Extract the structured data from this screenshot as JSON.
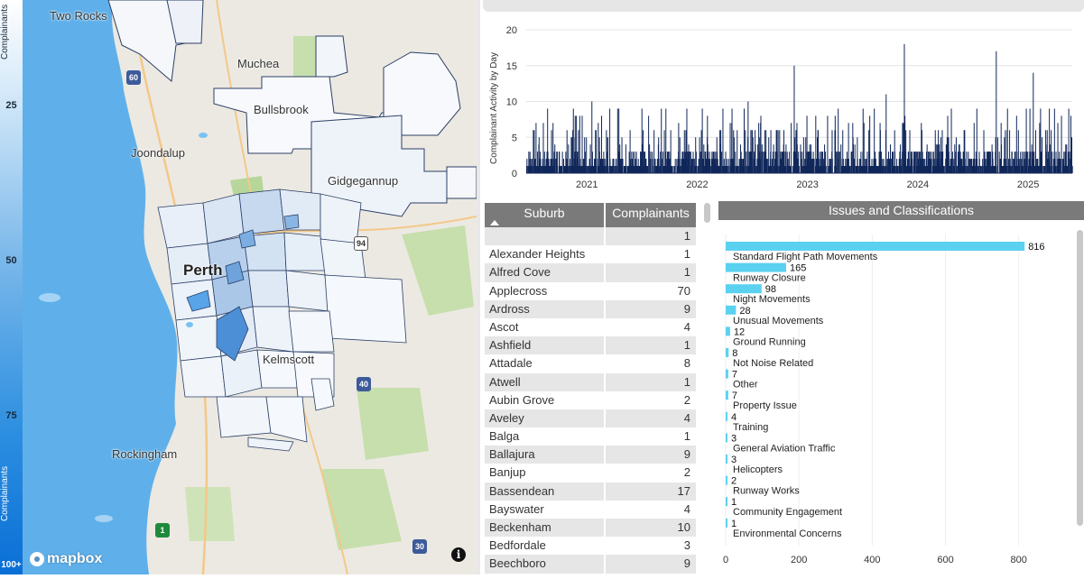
{
  "legend": {
    "title_top": "Complainants",
    "title_bottom": "Complainants",
    "ticks": [
      {
        "label": "25"
      },
      {
        "label": "50"
      },
      {
        "label": "75"
      },
      {
        "label": "100+"
      }
    ]
  },
  "map": {
    "places": {
      "two_rocks": "Two Rocks",
      "muchea": "Muchea",
      "bullsbrook": "Bullsbrook",
      "joondalup": "Joondalup",
      "gidgegannup": "Gidgegannup",
      "perth": "Perth",
      "kelmscott": "Kelmscott",
      "rockingham": "Rockingham"
    },
    "road_shields": {
      "r60": "60",
      "r94": "94",
      "r40": "40",
      "r30": "30",
      "r1": "1"
    },
    "attribution": "mapbox",
    "info": "i"
  },
  "chart_data": [
    {
      "type": "bar",
      "ylabel": "Complainant Activity by Day",
      "xlabel": "",
      "ylim": [
        0,
        20
      ],
      "yticks": [
        0,
        5,
        10,
        15,
        20
      ],
      "xticks": [
        "2021",
        "2022",
        "2023",
        "2024",
        "2025"
      ],
      "notable_peaks": [
        {
          "x": "2021-01",
          "y": 10
        },
        {
          "x": "2022-01",
          "y": 9
        },
        {
          "x": "2022-06",
          "y": 10
        },
        {
          "x": "2022-11",
          "y": 15
        },
        {
          "x": "2023-09",
          "y": 11
        },
        {
          "x": "2023-11",
          "y": 18
        },
        {
          "x": "2024-09",
          "y": 17
        },
        {
          "x": "2025-01",
          "y": 14
        }
      ]
    },
    {
      "type": "bar",
      "orientation": "horizontal",
      "title": "Issues and Classifications",
      "categories": [
        "Standard Flight Path Movements",
        "Runway Closure",
        "Night Movements",
        "Unusual Movements",
        "Ground Running",
        "Not Noise Related",
        "Other",
        "Property Issue",
        "Training",
        "General Aviation Traffic",
        "Helicopters",
        "Runway Works",
        "Community Engagement",
        "Environmental Concerns"
      ],
      "values": [
        816,
        165,
        98,
        28,
        12,
        8,
        7,
        7,
        4,
        3,
        3,
        2,
        1,
        1
      ],
      "xlim": [
        0,
        850
      ],
      "xticks": [
        0,
        200,
        400,
        600,
        800
      ],
      "color": "#5bd1f0"
    }
  ],
  "table": {
    "headers": {
      "suburb": "Suburb",
      "complainants": "Complainants"
    },
    "rows": [
      {
        "suburb": "",
        "count": "1"
      },
      {
        "suburb": "Alexander Heights",
        "count": "1"
      },
      {
        "suburb": "Alfred Cove",
        "count": "1"
      },
      {
        "suburb": "Applecross",
        "count": "70"
      },
      {
        "suburb": "Ardross",
        "count": "9"
      },
      {
        "suburb": "Ascot",
        "count": "4"
      },
      {
        "suburb": "Ashfield",
        "count": "1"
      },
      {
        "suburb": "Attadale",
        "count": "8"
      },
      {
        "suburb": "Atwell",
        "count": "1"
      },
      {
        "suburb": "Aubin Grove",
        "count": "2"
      },
      {
        "suburb": "Aveley",
        "count": "4"
      },
      {
        "suburb": "Balga",
        "count": "1"
      },
      {
        "suburb": "Ballajura",
        "count": "9"
      },
      {
        "suburb": "Banjup",
        "count": "2"
      },
      {
        "suburb": "Bassendean",
        "count": "17"
      },
      {
        "suburb": "Bayswater",
        "count": "4"
      },
      {
        "suburb": "Beckenham",
        "count": "10"
      },
      {
        "suburb": "Bedfordale",
        "count": "3"
      },
      {
        "suburb": "Beechboro",
        "count": "9"
      }
    ]
  },
  "colors": {
    "bar_dark": "#10275a",
    "bar_light": "#5bd1f0",
    "header_grey": "#7a7a7a",
    "row_stripe": "#e6e6e6",
    "ocean": "#5fb0ea"
  }
}
